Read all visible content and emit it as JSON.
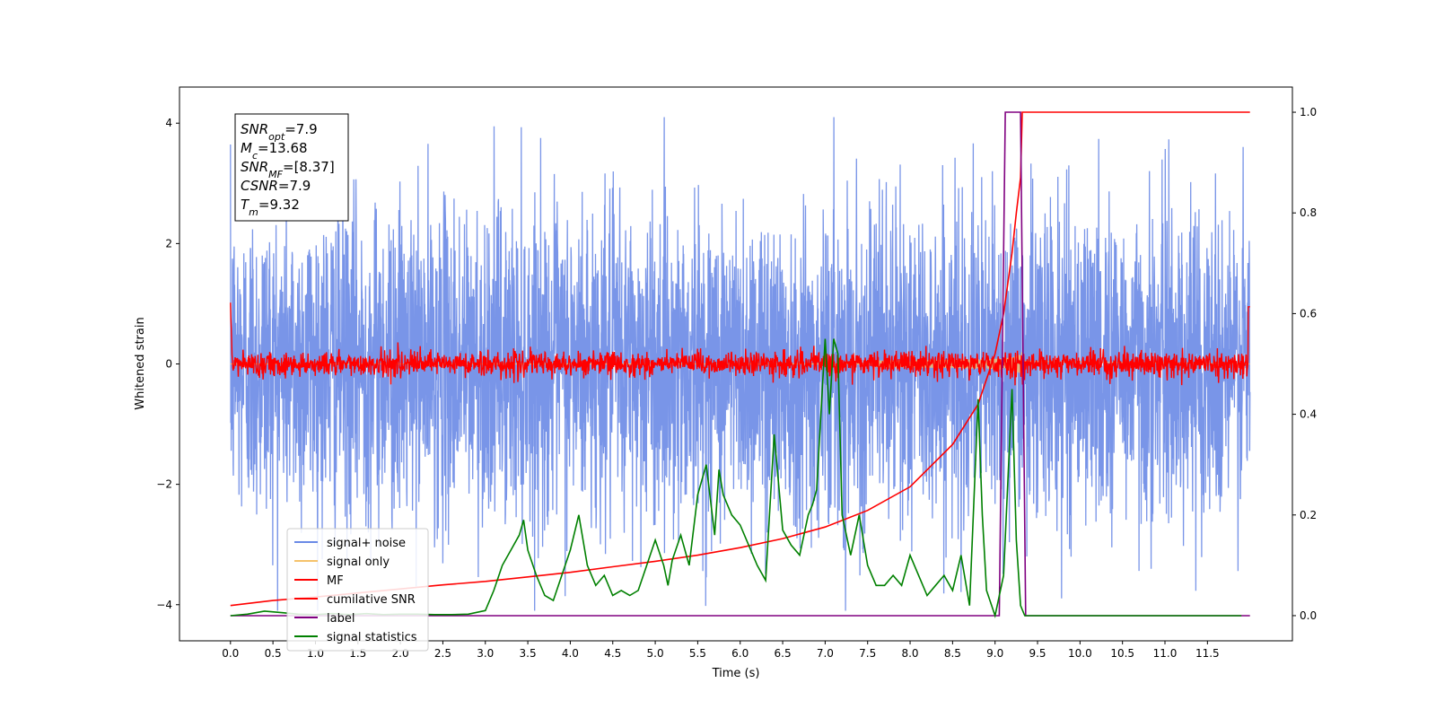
{
  "chart_data": {
    "type": "line",
    "xlabel": "Time (s)",
    "ylabel": "Whitened strain",
    "xlim": [
      -0.6,
      12.5
    ],
    "ylim_left": [
      -4.6,
      4.6
    ],
    "ylim_right": [
      -0.05,
      1.05
    ],
    "x_ticks": [
      0.0,
      0.5,
      1.0,
      1.5,
      2.0,
      2.5,
      3.0,
      3.5,
      4.0,
      4.5,
      5.0,
      5.5,
      6.0,
      6.5,
      7.0,
      7.5,
      8.0,
      8.5,
      9.0,
      9.5,
      10.0,
      10.5,
      11.0,
      11.5
    ],
    "x_tick_labels": [
      "0.0",
      "0.5",
      "1.0",
      "1.5",
      "2.0",
      "2.5",
      "3.0",
      "3.5",
      "4.0",
      "4.5",
      "5.0",
      "5.5",
      "6.0",
      "6.5",
      "7.0",
      "7.5",
      "8.0",
      "8.5",
      "9.0",
      "9.5",
      "10.0",
      "10.5",
      "11.0",
      "11.5"
    ],
    "y_ticks_left": [
      -4,
      -2,
      0,
      2,
      4
    ],
    "y_tick_labels_left": [
      "−4",
      "−2",
      "0",
      "2",
      "4"
    ],
    "y_ticks_right": [
      0.0,
      0.2,
      0.4,
      0.6,
      0.8,
      1.0
    ],
    "y_tick_labels_right": [
      "0.0",
      "0.2",
      "0.4",
      "0.6",
      "0.8",
      "1.0"
    ],
    "grid": false,
    "legend_position": "lower-left",
    "annotation_box": [
      {
        "sym": "SNR",
        "sub": "opt",
        "val": "=7.9"
      },
      {
        "sym": "M",
        "sub": "c",
        "val": "=13.68"
      },
      {
        "sym": "SNR",
        "sub": "MF",
        "val": "=[8.37]"
      },
      {
        "sym": "CSNR",
        "sub": "",
        "val": "=7.9"
      },
      {
        "sym": "T",
        "sub": "m",
        "val": "=9.32"
      }
    ],
    "params": {
      "duration_s": 12.0,
      "noise_sigma": 1.0,
      "merger_time_s": 9.32,
      "optimal_snr": 7.9,
      "chirp_mass": 13.68,
      "mf_snr": 8.37,
      "cumulative_snr": 7.9
    },
    "series": [
      {
        "name": "signal+ noise",
        "color": "#6a8ae6",
        "axis": "left",
        "kind": "noise",
        "x_range": [
          0.0,
          12.0
        ]
      },
      {
        "name": "signal only",
        "color": "#f5c26b",
        "axis": "left",
        "kind": "chirp",
        "x_range": [
          0.0,
          12.0
        ]
      },
      {
        "name": "MF",
        "color": "#ff0000",
        "axis": "left",
        "kind": "mf",
        "x_range": [
          0.0,
          12.0
        ]
      },
      {
        "name": "cumilative SNR",
        "color": "#ff0000",
        "axis": "right",
        "kind": "csnr",
        "x": [
          0.0,
          0.5,
          1.0,
          1.5,
          2.0,
          2.5,
          3.0,
          3.5,
          4.0,
          4.5,
          5.0,
          5.5,
          6.0,
          6.5,
          7.0,
          7.5,
          8.0,
          8.5,
          8.8,
          9.0,
          9.1,
          9.2,
          9.25,
          9.3,
          9.32,
          12.0
        ],
        "values": [
          0.02,
          0.03,
          0.037,
          0.045,
          0.053,
          0.061,
          0.068,
          0.077,
          0.086,
          0.097,
          0.108,
          0.12,
          0.135,
          0.153,
          0.176,
          0.209,
          0.256,
          0.34,
          0.42,
          0.52,
          0.6,
          0.72,
          0.8,
          0.87,
          1.0,
          1.0
        ]
      },
      {
        "name": "label",
        "color": "#800080",
        "axis": "right",
        "kind": "step",
        "x": [
          0.0,
          9.05,
          9.12,
          9.12,
          9.3,
          9.36,
          9.36,
          12.0
        ],
        "values": [
          0.0,
          0.0,
          1.0,
          1.0,
          1.0,
          0.0,
          0.0,
          0.0
        ]
      },
      {
        "name": "signal statistics",
        "color": "#008000",
        "axis": "right",
        "kind": "line",
        "x": [
          0.0,
          0.2,
          0.4,
          0.6,
          0.8,
          1.0,
          1.2,
          1.4,
          1.6,
          1.8,
          2.0,
          2.2,
          2.4,
          2.6,
          2.8,
          3.0,
          3.1,
          3.2,
          3.3,
          3.4,
          3.45,
          3.5,
          3.6,
          3.7,
          3.8,
          4.0,
          4.1,
          4.2,
          4.3,
          4.4,
          4.5,
          4.6,
          4.7,
          4.8,
          4.9,
          5.0,
          5.1,
          5.15,
          5.2,
          5.3,
          5.4,
          5.5,
          5.6,
          5.7,
          5.75,
          5.8,
          5.9,
          6.0,
          6.1,
          6.2,
          6.3,
          6.4,
          6.5,
          6.6,
          6.7,
          6.8,
          6.85,
          6.9,
          7.0,
          7.05,
          7.1,
          7.15,
          7.2,
          7.3,
          7.4,
          7.45,
          7.5,
          7.6,
          7.7,
          7.8,
          7.9,
          8.0,
          8.1,
          8.2,
          8.3,
          8.4,
          8.5,
          8.6,
          8.7,
          8.8,
          8.85,
          8.9,
          9.0,
          9.1,
          9.2,
          9.25,
          9.3,
          9.35,
          9.4,
          9.5,
          9.7,
          10.0,
          11.0,
          11.9
        ],
        "values": [
          0.0,
          0.003,
          0.009,
          0.006,
          0.003,
          0.002,
          0.004,
          0.002,
          0.004,
          0.002,
          0.003,
          0.003,
          0.002,
          0.002,
          0.003,
          0.01,
          0.05,
          0.1,
          0.13,
          0.16,
          0.19,
          0.13,
          0.08,
          0.04,
          0.03,
          0.13,
          0.2,
          0.1,
          0.06,
          0.08,
          0.04,
          0.05,
          0.04,
          0.05,
          0.1,
          0.15,
          0.1,
          0.06,
          0.11,
          0.16,
          0.1,
          0.24,
          0.3,
          0.16,
          0.29,
          0.24,
          0.2,
          0.18,
          0.14,
          0.1,
          0.07,
          0.36,
          0.17,
          0.14,
          0.12,
          0.2,
          0.22,
          0.25,
          0.55,
          0.4,
          0.55,
          0.52,
          0.2,
          0.12,
          0.2,
          0.15,
          0.1,
          0.06,
          0.06,
          0.08,
          0.06,
          0.12,
          0.08,
          0.04,
          0.06,
          0.08,
          0.05,
          0.12,
          0.02,
          0.43,
          0.2,
          0.05,
          0.0,
          0.08,
          0.45,
          0.15,
          0.02,
          0.0,
          0.0,
          0.0,
          0.0,
          0.0,
          0.0,
          0.0
        ]
      }
    ]
  }
}
